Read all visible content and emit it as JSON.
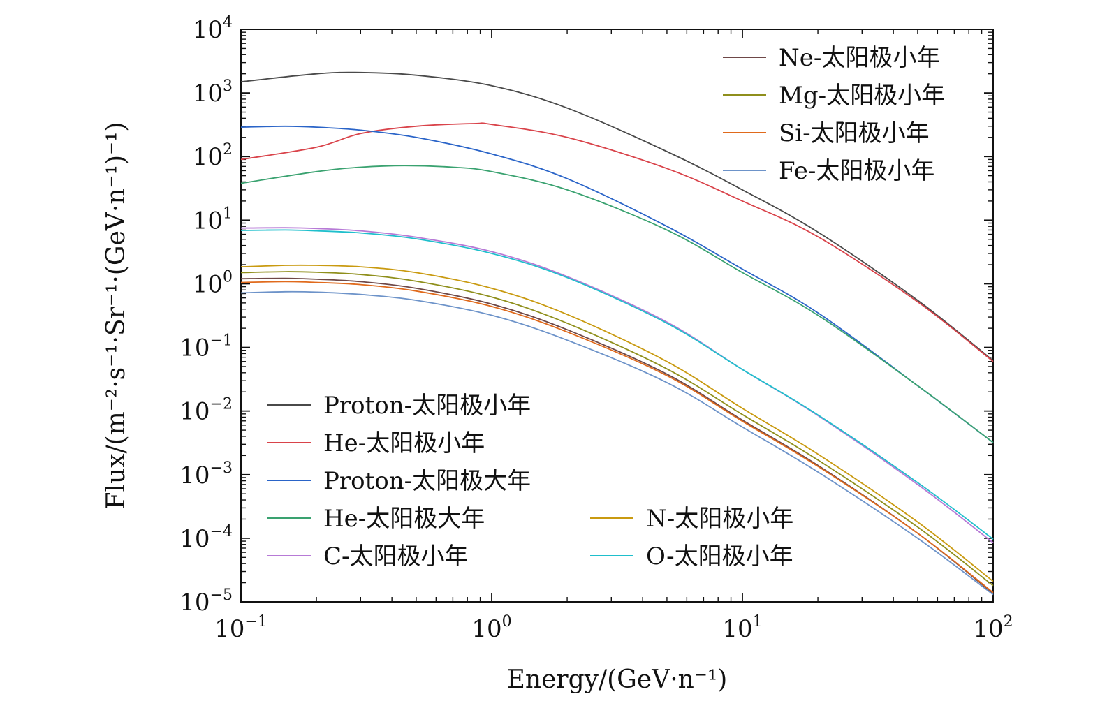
{
  "chart_data": {
    "type": "line",
    "xlabel": "Energy/(GeV·n⁻¹)",
    "ylabel": "Flux/(m⁻²·s⁻¹·Sr⁻¹·(GeV·n⁻¹)⁻¹)",
    "x_scale": "log",
    "y_scale": "log",
    "xlim": [
      0.1,
      100
    ],
    "ylim": [
      1e-05,
      10000
    ],
    "x_ticks": [
      {
        "base": "10",
        "exp": "−1",
        "value": 0.1
      },
      {
        "base": "10",
        "exp": "0",
        "value": 1
      },
      {
        "base": "10",
        "exp": "1",
        "value": 10
      },
      {
        "base": "10",
        "exp": "2",
        "value": 100
      }
    ],
    "y_ticks": [
      {
        "base": "10",
        "exp": "4",
        "value": 10000
      },
      {
        "base": "10",
        "exp": "3",
        "value": 1000
      },
      {
        "base": "10",
        "exp": "2",
        "value": 100
      },
      {
        "base": "10",
        "exp": "1",
        "value": 10
      },
      {
        "base": "10",
        "exp": "0",
        "value": 1
      },
      {
        "base": "10",
        "exp": "−1",
        "value": 0.1
      },
      {
        "base": "10",
        "exp": "−2",
        "value": 0.01
      },
      {
        "base": "10",
        "exp": "−3",
        "value": 0.001
      },
      {
        "base": "10",
        "exp": "−4",
        "value": 0.0001
      },
      {
        "base": "10",
        "exp": "−5",
        "value": 1e-05
      }
    ],
    "grid": false,
    "series": [
      {
        "name": "Proton-太阳极小年",
        "color": "#4a4a4a",
        "legend": "lower-left",
        "x": [
          0.1,
          0.2,
          0.3,
          0.5,
          1,
          2,
          5,
          10,
          20,
          50,
          100
        ],
        "y": [
          1500,
          2000,
          2100,
          1900,
          1300,
          580,
          120,
          30,
          6.5,
          0.55,
          0.062
        ]
      },
      {
        "name": "He-太阳极小年",
        "color": "#d9434a",
        "legend": "lower-left",
        "x": [
          0.1,
          0.2,
          0.3,
          0.5,
          0.85,
          1,
          2,
          5,
          10,
          20,
          50,
          100
        ],
        "y": [
          90,
          140,
          230,
          300,
          330,
          320,
          200,
          65,
          20,
          5.5,
          0.52,
          0.06
        ]
      },
      {
        "name": "Proton-太阳极大年",
        "color": "#2a64c8",
        "legend": "lower-left",
        "x": [
          0.1,
          0.15,
          0.2,
          0.3,
          0.5,
          1,
          2,
          5,
          10,
          20,
          50,
          100
        ],
        "y": [
          290,
          300,
          290,
          260,
          200,
          110,
          45,
          8,
          1.7,
          0.35,
          0.025,
          0.0032
        ]
      },
      {
        "name": "He-太阳极大年",
        "color": "#3aa270",
        "legend": "lower-left",
        "x": [
          0.1,
          0.2,
          0.3,
          0.45,
          0.7,
          1,
          2,
          5,
          10,
          20,
          50,
          100
        ],
        "y": [
          38,
          58,
          68,
          72,
          68,
          58,
          30,
          7,
          1.5,
          0.32,
          0.025,
          0.0032
        ]
      },
      {
        "name": "C-太阳极小年",
        "color": "#b77ad6",
        "legend": "lower-left",
        "x": [
          0.1,
          0.15,
          0.2,
          0.3,
          0.5,
          1,
          2,
          5,
          10,
          20,
          50,
          100
        ],
        "y": [
          7.5,
          7.6,
          7.4,
          6.8,
          5.4,
          3.2,
          1.3,
          0.25,
          0.045,
          0.0085,
          0.0007,
          8.5e-05
        ]
      },
      {
        "name": "N-太阳极小年",
        "color": "#c99a10",
        "legend": "lower-right",
        "x": [
          0.1,
          0.15,
          0.2,
          0.3,
          0.5,
          1,
          2,
          5,
          10,
          20,
          50,
          100
        ],
        "y": [
          1.85,
          1.95,
          1.95,
          1.85,
          1.5,
          0.85,
          0.33,
          0.06,
          0.011,
          0.0021,
          0.00018,
          2.1e-05
        ]
      },
      {
        "name": "O-太阳极小年",
        "color": "#1fbfcc",
        "legend": "lower-right",
        "x": [
          0.1,
          0.15,
          0.2,
          0.3,
          0.5,
          1,
          2,
          5,
          10,
          20,
          50,
          100
        ],
        "y": [
          6.9,
          7.0,
          6.8,
          6.3,
          5.1,
          3.0,
          1.25,
          0.24,
          0.045,
          0.0087,
          0.00075,
          9.7e-05
        ]
      },
      {
        "name": "Ne-太阳极小年",
        "color": "#6e4848",
        "legend": "upper-right",
        "x": [
          0.1,
          0.15,
          0.2,
          0.3,
          0.5,
          1,
          2,
          5,
          10,
          20,
          50,
          100
        ],
        "y": [
          1.2,
          1.22,
          1.18,
          1.08,
          0.85,
          0.48,
          0.19,
          0.038,
          0.0072,
          0.0014,
          0.00012,
          1.35e-05
        ]
      },
      {
        "name": "Mg-太阳极小年",
        "color": "#8f8f1c",
        "legend": "upper-right",
        "x": [
          0.1,
          0.15,
          0.2,
          0.3,
          0.5,
          1,
          2,
          5,
          10,
          20,
          50,
          100
        ],
        "y": [
          1.5,
          1.55,
          1.52,
          1.4,
          1.1,
          0.62,
          0.24,
          0.046,
          0.0088,
          0.0017,
          0.00015,
          1.8e-05
        ]
      },
      {
        "name": "Si-太阳极小年",
        "color": "#e06a1c",
        "legend": "upper-right",
        "x": [
          0.1,
          0.15,
          0.2,
          0.3,
          0.5,
          1,
          2,
          5,
          10,
          20,
          50,
          100
        ],
        "y": [
          1.05,
          1.08,
          1.05,
          0.97,
          0.77,
          0.44,
          0.175,
          0.036,
          0.0069,
          0.00135,
          0.00012,
          1.4e-05
        ]
      },
      {
        "name": "Fe-太阳极小年",
        "color": "#6d93c9",
        "legend": "upper-right",
        "x": [
          0.1,
          0.15,
          0.2,
          0.3,
          0.5,
          1,
          2,
          5,
          10,
          20,
          50,
          100
        ],
        "y": [
          0.72,
          0.75,
          0.74,
          0.68,
          0.55,
          0.32,
          0.13,
          0.028,
          0.0056,
          0.0011,
          0.0001,
          1.3e-05
        ]
      }
    ]
  }
}
